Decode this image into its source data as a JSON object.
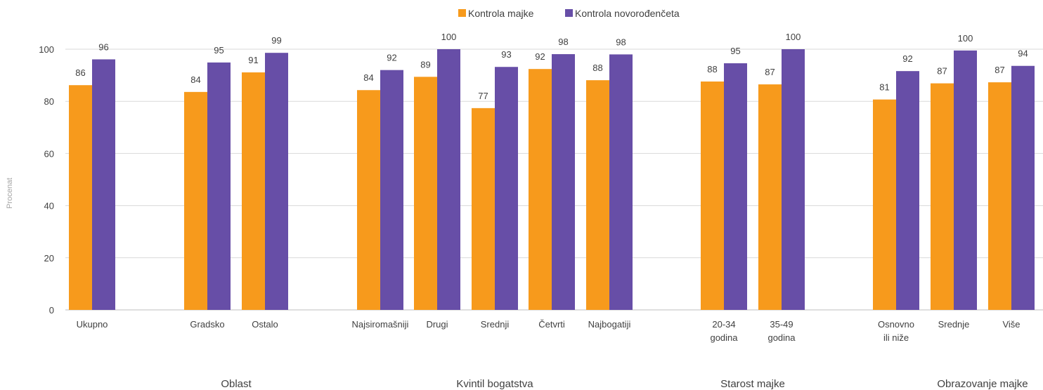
{
  "chart_data": {
    "type": "bar",
    "title": "",
    "ylabel": "Procenat",
    "xlabel": "",
    "ylim": [
      0,
      100
    ],
    "yticks": [
      0,
      20,
      40,
      60,
      80,
      100
    ],
    "grid": true,
    "legend_position": "top-center",
    "categories": [
      {
        "label": [
          "Ukupno"
        ],
        "group": 0
      },
      {
        "label": [
          "Gradsko"
        ],
        "group": 1
      },
      {
        "label": [
          "Ostalo"
        ],
        "group": 1
      },
      {
        "label": [
          "Najsiromašniji"
        ],
        "group": 2
      },
      {
        "label": [
          "Drugi"
        ],
        "group": 2
      },
      {
        "label": [
          "Srednji"
        ],
        "group": 2
      },
      {
        "label": [
          "Četvrti"
        ],
        "group": 2
      },
      {
        "label": [
          "Najbogatiji"
        ],
        "group": 2
      },
      {
        "label": [
          "20-34",
          "godina"
        ],
        "group": 3
      },
      {
        "label": [
          "35-49",
          "godina"
        ],
        "group": 3
      },
      {
        "label": [
          "Osnovno",
          "ili niže"
        ],
        "group": 4
      },
      {
        "label": [
          "Srednje"
        ],
        "group": 4
      },
      {
        "label": [
          "Više"
        ],
        "group": 4
      }
    ],
    "groups": [
      "",
      "Oblast",
      "Kvintil bogatstva",
      "Starost majke",
      "Obrazovanje majke"
    ],
    "series": [
      {
        "name": "Kontrola majke",
        "color": "#f79a1c",
        "values": [
          86.2,
          83.6,
          91.1,
          84.3,
          89.4,
          77.4,
          92.4,
          88.1,
          87.6,
          86.5,
          80.7,
          86.9,
          87.3
        ],
        "labels": [
          "86",
          "84",
          "91",
          "84",
          "89",
          "77",
          "92",
          "88",
          "88",
          "87",
          "81",
          "87",
          "87"
        ]
      },
      {
        "name": "Kontrola novorođenčeta",
        "color": "#674ea7",
        "values": [
          96.1,
          94.9,
          98.6,
          92.0,
          100,
          93.2,
          98.1,
          98.0,
          94.6,
          100,
          91.6,
          99.5,
          93.6
        ],
        "labels": [
          "96",
          "95",
          "99",
          "92",
          "100",
          "93",
          "98",
          "98",
          "95",
          "100",
          "92",
          "100",
          "94"
        ]
      }
    ]
  }
}
